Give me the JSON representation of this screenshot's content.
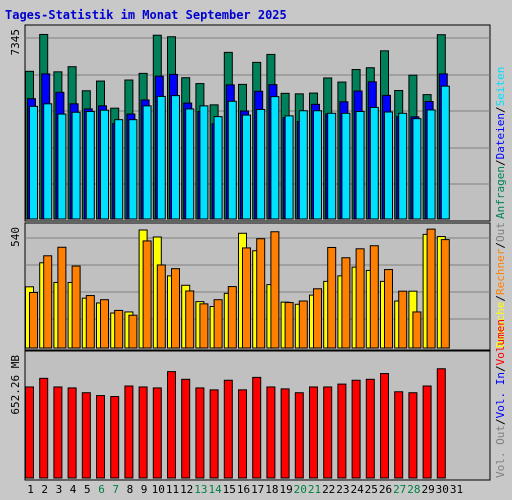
{
  "chart_data": {
    "type": "bar",
    "title": "Tages-Statistik im Monat September 2025",
    "colors": {
      "title": "#0000d0",
      "hits": "#00805a",
      "files": "#0000ff",
      "pages": "#00e0ff",
      "visits": "#ffff00",
      "sites": "#ff8000",
      "volume": "#ff0000",
      "weekend_label": "#008040",
      "weekday_label": "#000000",
      "plot_bg": "#c0c0c0",
      "grid": "#808080",
      "legend_separator": "#000000"
    },
    "days": [
      "1",
      "2",
      "3",
      "4",
      "5",
      "6",
      "7",
      "8",
      "9",
      "10",
      "11",
      "12",
      "13",
      "14",
      "15",
      "16",
      "17",
      "18",
      "19",
      "20",
      "21",
      "22",
      "23",
      "24",
      "25",
      "26",
      "27",
      "28",
      "29",
      "30",
      "31"
    ],
    "weekend_days": [
      "6",
      "7",
      "13",
      "14",
      "20",
      "21",
      "27",
      "28"
    ],
    "panels": [
      {
        "ymax_label": "7345",
        "ymax": 7345,
        "series": [
          {
            "name": "Anfragen",
            "values": [
              5770,
              7210,
              5750,
              5950,
              5010,
              5390,
              4330,
              5430,
              5690,
              7180,
              7120,
              5520,
              5290,
              4460,
              6510,
              5260,
              6120,
              6430,
              4910,
              4890,
              4920,
              5510,
              5350,
              5840,
              5910,
              6570,
              5020,
              5620,
              4860,
              7200
            ]
          },
          {
            "name": "Dateien",
            "values": [
              4700,
              5670,
              4950,
              4500,
              4300,
              4420,
              3730,
              4100,
              4650,
              5580,
              5650,
              4530,
              4200,
              3720,
              5240,
              4220,
              4990,
              5250,
              3960,
              3810,
              4480,
              4100,
              4580,
              5000,
              5360,
              4830,
              4000,
              3990,
              4590,
              5670
            ]
          },
          {
            "name": "Seiten",
            "values": [
              4400,
              4500,
              4100,
              4170,
              4200,
              4250,
              3880,
              3880,
              4420,
              4790,
              4820,
              4300,
              4420,
              4000,
              4600,
              4060,
              4280,
              4780,
              4030,
              4230,
              4230,
              4130,
              4130,
              4200,
              4360,
              4180,
              4130,
              3920,
              4260,
              5190
            ]
          }
        ]
      },
      {
        "ymax_label": "540",
        "ymax": 540,
        "series": [
          {
            "name": "Besuche",
            "values": [
              280,
              390,
              300,
              300,
              228,
              206,
              160,
              165,
              540,
              508,
              330,
              287,
              212,
              190,
              250,
              525,
              445,
              290,
              210,
              200,
              242,
              305,
              330,
              370,
              355,
              305,
              215,
              260,
              520,
              510
            ]
          },
          {
            "name": "Rechner",
            "values": [
              254,
              422,
              461,
              375,
              240,
              221,
              172,
              150,
              490,
              380,
              363,
              261,
              202,
              221,
              281,
              458,
              500,
              532,
              208,
              215,
              271,
              460,
              413,
              454,
              468,
              359,
              260,
              165,
              544,
              496
            ]
          }
        ]
      },
      {
        "ymax_label": "652.26 MB",
        "ymax": 652.26,
        "series": [
          {
            "name": "Volumen",
            "values": [
              475,
              520,
              475,
              470,
              445,
              430,
              425,
              480,
              475,
              470,
              555,
              515,
              470,
              460,
              510,
              460,
              525,
              475,
              465,
              445,
              475,
              475,
              490,
              510,
              515,
              545,
              450,
              445,
              480,
              570
            ]
          }
        ]
      }
    ],
    "legend_right": [
      {
        "panel": 0,
        "items": [
          {
            "text": "Anfragen",
            "color": "#00805a"
          },
          {
            "text": "Dateien",
            "color": "#0000ff"
          },
          {
            "text": "Seiten",
            "color": "#00e0ff"
          }
        ]
      },
      {
        "panel": 1,
        "items": [
          {
            "text": "Besuche",
            "color": "#ffff00"
          },
          {
            "text": "Rechner",
            "color": "#ff8000"
          },
          {
            "text": "Out",
            "color": "#808080"
          }
        ]
      },
      {
        "panel": 2,
        "items": [
          {
            "text": "Vol. Out",
            "color": "#808080"
          },
          {
            "text": "Vol. In",
            "color": "#0000ff"
          },
          {
            "text": "Volumen",
            "color": "#ff0000"
          }
        ]
      }
    ]
  }
}
